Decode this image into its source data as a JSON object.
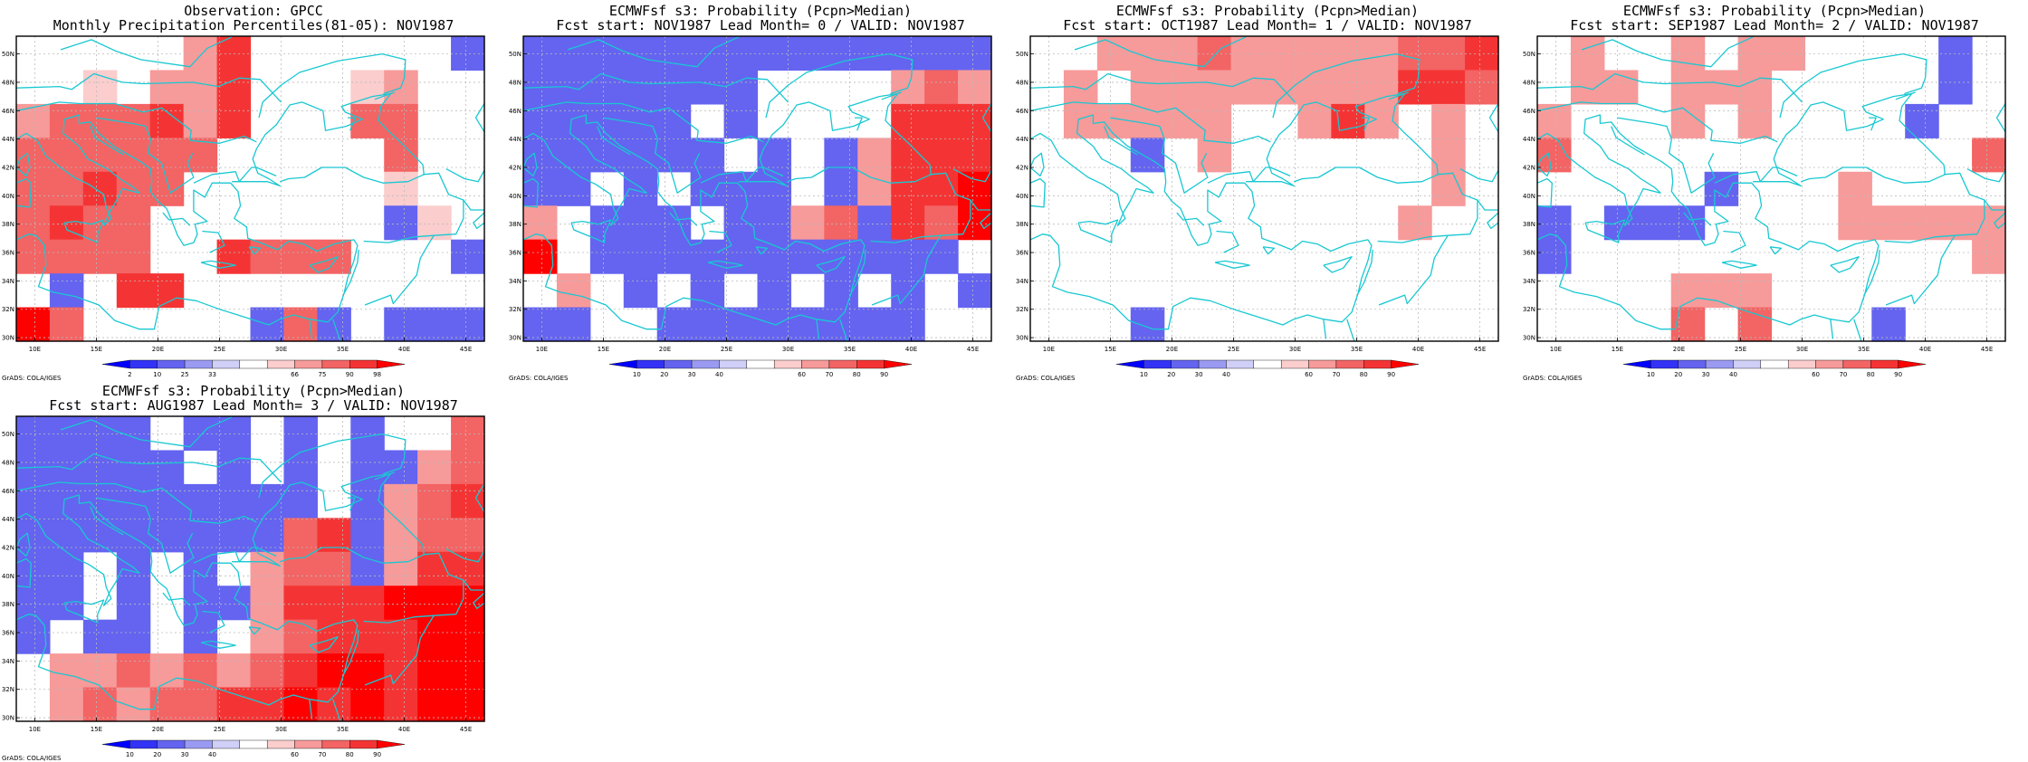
{
  "panels": [
    {
      "title1": "Observation: GPCC",
      "title2": "Monthly Precipitation Percentiles(81-05): NOV1987",
      "legend": {
        "labels": [
          "2",
          "10",
          "25",
          "33",
          "66",
          "75",
          "90",
          "98"
        ]
      },
      "credit": "GrADS: COLA/IGES"
    },
    {
      "title1": "ECMWFsf s3: Probability (Pcpn>Median)",
      "title2": "Fcst start: NOV1987  Lead Month= 0 / VALID: NOV1987",
      "legend": {
        "labels": [
          "10",
          "20",
          "30",
          "40",
          "60",
          "70",
          "80",
          "90"
        ]
      },
      "credit": "GrADS: COLA/IGES"
    },
    {
      "title1": "ECMWFsf s3: Probability (Pcpn>Median)",
      "title2": "Fcst start: OCT1987  Lead Month= 1 / VALID: NOV1987",
      "legend": {
        "labels": [
          "10",
          "20",
          "30",
          "40",
          "60",
          "70",
          "80",
          "90"
        ]
      },
      "credit": "GrADS: COLA/IGES"
    },
    {
      "title1": "ECMWFsf s3: Probability (Pcpn>Median)",
      "title2": "Fcst start: SEP1987  Lead Month= 2 / VALID: NOV1987",
      "legend": {
        "labels": [
          "10",
          "20",
          "30",
          "40",
          "60",
          "70",
          "80",
          "90"
        ]
      },
      "credit": "GrADS: COLA/IGES"
    },
    {
      "title1": "ECMWFsf s3: Probability (Pcpn>Median)",
      "title2": "Fcst start: AUG1987  Lead Month= 3 / VALID: NOV1987",
      "legend": {
        "labels": [
          "10",
          "20",
          "30",
          "40",
          "60",
          "70",
          "80",
          "90"
        ]
      },
      "credit": "GrADS: COLA/IGES"
    }
  ],
  "map": {
    "lon_labels": [
      "10E",
      "15E",
      "20E",
      "25E",
      "30E",
      "35E",
      "40E",
      "45E"
    ],
    "lat_labels": [
      "30N",
      "32N",
      "34N",
      "36N",
      "38N",
      "40N",
      "42N",
      "44N",
      "46N",
      "48N",
      "50N"
    ]
  },
  "colors": {
    "scale": [
      "#0000ff",
      "#3333f5",
      "#6464f0",
      "#9a9af2",
      "#cfcff8",
      "#ffffff",
      "#fbcdcd",
      "#f79a9a",
      "#f36464",
      "#f43434",
      "#ff0000"
    ],
    "coast": "#19c8d2",
    "grid": "#bbbbbb"
  }
}
